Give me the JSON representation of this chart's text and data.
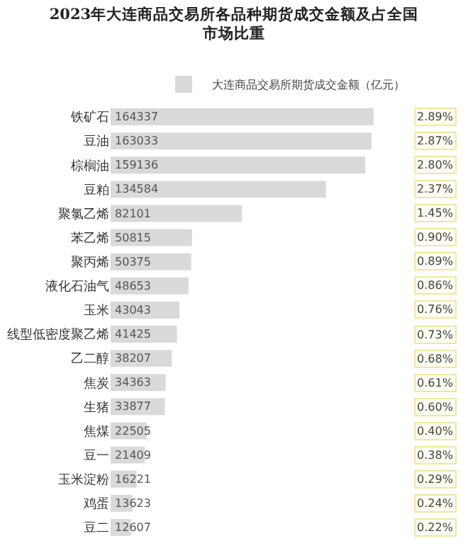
{
  "chart_data": {
    "type": "bar",
    "orientation": "horizontal",
    "title": "2023年大连商品交易所各品种期货成交金额及占全国市场比重",
    "categories": [
      "铁矿石",
      "豆油",
      "棕榈油",
      "豆粕",
      "聚氯乙烯",
      "苯乙烯",
      "聚丙烯",
      "液化石油气",
      "玉米",
      "线型低密度聚乙烯",
      "乙二醇",
      "焦炭",
      "生猪",
      "焦煤",
      "豆一",
      "玉米淀粉",
      "鸡蛋",
      "豆二"
    ],
    "series": [
      {
        "name": "大连商品交易所期货成交金额（亿元）",
        "color": "#d9d9d9",
        "values": [
          164337,
          163033,
          159136,
          134584,
          82101,
          50815,
          50375,
          48653,
          43043,
          41425,
          38207,
          34363,
          33877,
          22505,
          21409,
          16221,
          13623,
          12607
        ]
      }
    ],
    "data_labels": true,
    "legend": "top",
    "grid": false,
    "annotations": [
      "2.89%",
      "2.87%",
      "2.80%",
      "2.37%",
      "1.45%",
      "0.90%",
      "0.89%",
      "0.86%",
      "0.76%",
      "0.73%",
      "0.68%",
      "0.61%",
      "0.60%",
      "0.40%",
      "0.38%",
      "0.29%",
      "0.24%",
      "0.22%"
    ]
  }
}
